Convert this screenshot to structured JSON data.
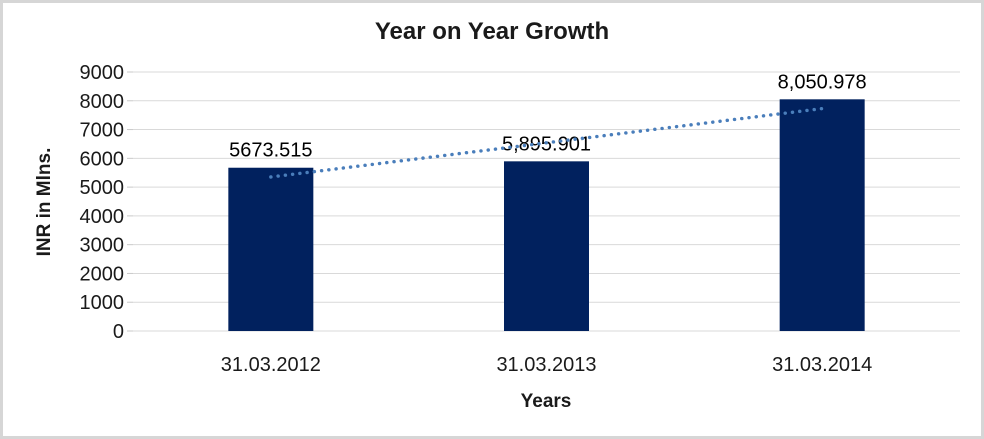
{
  "chart_data": {
    "type": "bar",
    "title": "Year on Year Growth",
    "categories": [
      "31.03.2012",
      "31.03.2013",
      "31.03.2014"
    ],
    "series": [
      {
        "name": "INR in Mlns.",
        "values": [
          5673.515,
          5895.901,
          8050.978
        ],
        "data_labels": [
          "5673.515",
          "5,895.901",
          "8,050.978"
        ]
      }
    ],
    "xlabel": "Years",
    "ylabel": "INR in Mlns.",
    "ylim": [
      0,
      9000
    ],
    "ytick_interval": 1000,
    "ytick_labels": [
      "0",
      "1000",
      "2000",
      "3000",
      "4000",
      "5000",
      "6000",
      "7000",
      "8000",
      "9000"
    ],
    "grid": "horizontal-major",
    "legend_position": "none",
    "trendline": {
      "type": "linear",
      "style": "dotted",
      "endpoint_values": [
        5351.4,
        7728.9
      ]
    },
    "colors": {
      "bar": "#01215e",
      "gridline": "#d9d9d9",
      "tick_mark": "#c9c9c9",
      "text": "#1a1a1a",
      "data_label": "#000000",
      "trendline": "#4a7ebb",
      "border": "#d6d6d6"
    }
  }
}
